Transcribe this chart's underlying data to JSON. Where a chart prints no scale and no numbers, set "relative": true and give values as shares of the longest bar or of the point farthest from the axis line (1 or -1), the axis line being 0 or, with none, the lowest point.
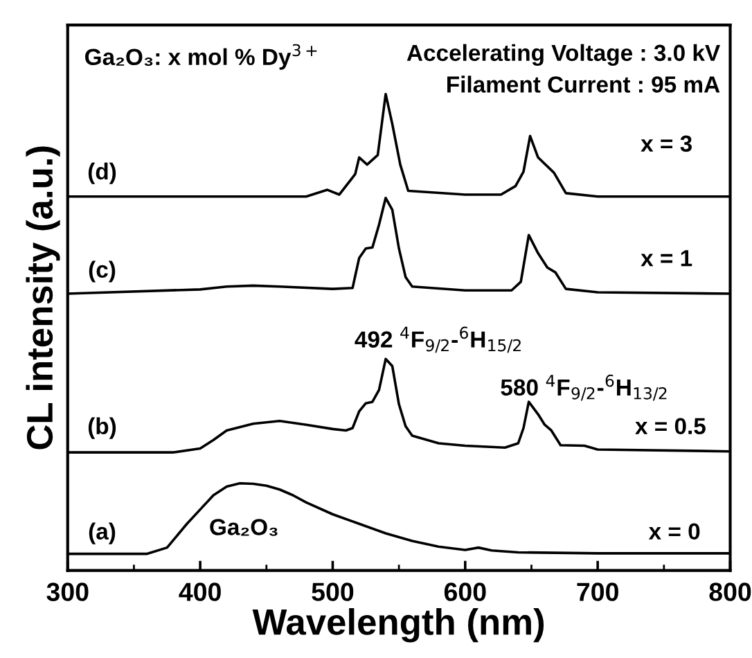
{
  "chart_data": {
    "type": "line",
    "relative": true,
    "xlabel": "Wavelength (nm)",
    "ylabel": "CL intensity (a.u.)",
    "xlim": [
      300,
      800
    ],
    "xticks": [
      300,
      400,
      500,
      600,
      700,
      800
    ],
    "grid": false,
    "legend": false,
    "marker": "none",
    "line_style": "solid",
    "series": [
      {
        "color": "#000000",
        "x": [
          300,
          360,
          375,
          390,
          400,
          410,
          420,
          430,
          440,
          450,
          460,
          470,
          480,
          500,
          520,
          540,
          560,
          580,
          600,
          610,
          620,
          640,
          700,
          800
        ],
        "values": [
          0.035,
          0.035,
          0.048,
          0.098,
          0.128,
          0.158,
          0.176,
          0.183,
          0.182,
          0.178,
          0.17,
          0.158,
          0.143,
          0.118,
          0.098,
          0.078,
          0.062,
          0.05,
          0.043,
          0.048,
          0.042,
          0.038,
          0.036,
          0.036
        ]
      },
      {
        "color": "#000000",
        "x": [
          300,
          380,
          400,
          410,
          420,
          440,
          460,
          480,
          500,
          510,
          515,
          520,
          525,
          530,
          535,
          540,
          545,
          550,
          555,
          560,
          580,
          600,
          630,
          640,
          644,
          648,
          655,
          660,
          665,
          672,
          690,
          700,
          800
        ],
        "values": [
          0.248,
          0.248,
          0.256,
          0.274,
          0.294,
          0.308,
          0.314,
          0.306,
          0.297,
          0.294,
          0.299,
          0.334,
          0.351,
          0.354,
          0.379,
          0.444,
          0.429,
          0.349,
          0.303,
          0.283,
          0.267,
          0.262,
          0.258,
          0.267,
          0.299,
          0.354,
          0.328,
          0.306,
          0.294,
          0.263,
          0.262,
          0.254,
          0.25
        ]
      },
      {
        "color": "#000000",
        "x": [
          300,
          400,
          420,
          440,
          460,
          500,
          515,
          520,
          525,
          530,
          535,
          540,
          545,
          550,
          555,
          560,
          600,
          635,
          642,
          648,
          655,
          662,
          668,
          676,
          700,
          800
        ],
        "values": [
          0.581,
          0.59,
          0.596,
          0.598,
          0.596,
          0.591,
          0.593,
          0.656,
          0.676,
          0.678,
          0.726,
          0.782,
          0.757,
          0.676,
          0.616,
          0.596,
          0.588,
          0.588,
          0.606,
          0.704,
          0.666,
          0.636,
          0.626,
          0.591,
          0.584,
          0.581
        ]
      },
      {
        "color": "#000000",
        "x": [
          300,
          480,
          496,
          505,
          517,
          520,
          526,
          534,
          540,
          545,
          551,
          557,
          600,
          627,
          638,
          644,
          649,
          655,
          667,
          676,
          700,
          800
        ],
        "values": [
          0.785,
          0.785,
          0.799,
          0.789,
          0.832,
          0.867,
          0.852,
          0.872,
          1.0,
          0.937,
          0.852,
          0.797,
          0.789,
          0.789,
          0.807,
          0.837,
          0.912,
          0.867,
          0.835,
          0.792,
          0.785,
          0.785
        ]
      }
    ],
    "annotations": [
      "Ga₂O₃: x mol % Dy$^{3+}$",
      "Accelerating Voltage : 3.0 kV",
      "Filament Current : 95 mA",
      "(a)",
      "x = 0",
      "Ga₂O₃",
      "(b)",
      "x = 0.5",
      "492 $^{4}$F$_{9/2}$-$^{6}$H$_{15/2}$",
      "580 $^{4}$F$_{9/2}$-$^{6}$H$_{13/2}$",
      "(c)",
      "x = 1",
      "(d)",
      "x = 3"
    ]
  }
}
